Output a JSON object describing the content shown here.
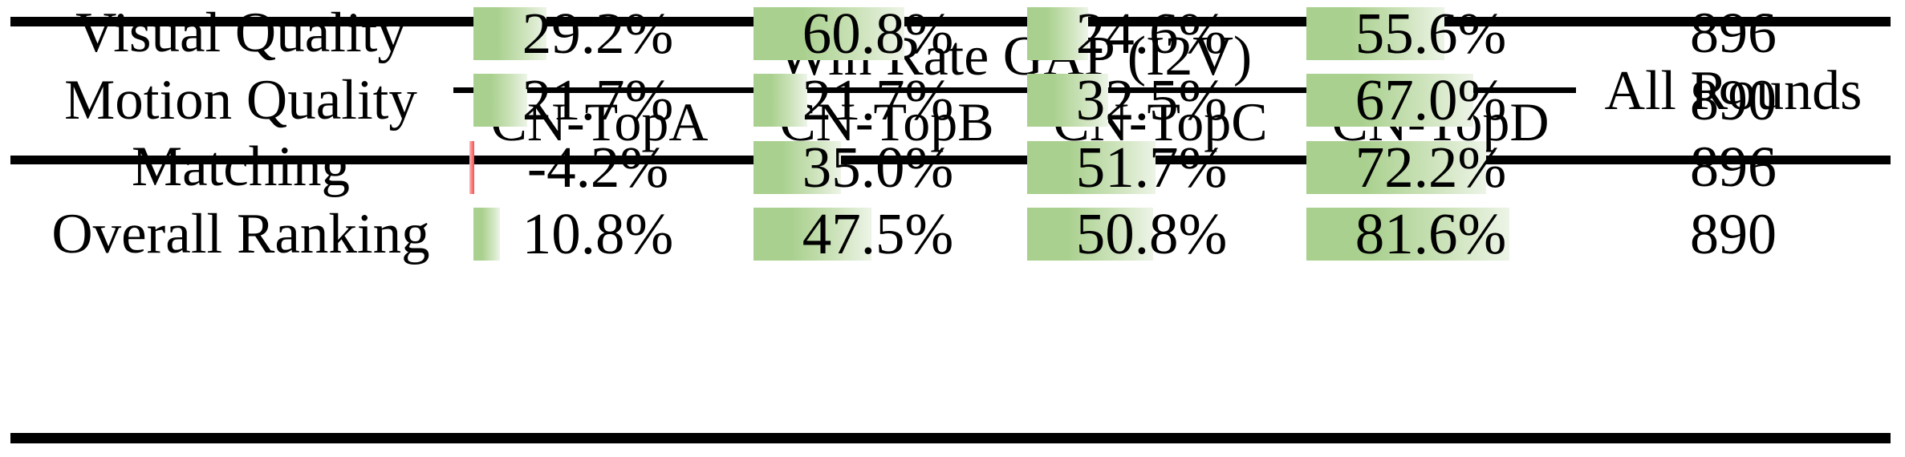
{
  "figure": {
    "title": "Win Rate GAP (I2V)",
    "all_rounds_label": "All Rounds",
    "columns": [
      "CN-TopA",
      "CN-TopB",
      "CN-TopC",
      "CN-TopD"
    ],
    "rows": [
      {
        "label": "Visual Quality",
        "cells": [
          {
            "text": "29.2%",
            "value": 29.2
          },
          {
            "text": "60.8%",
            "value": 60.8
          },
          {
            "text": "24.6%",
            "value": 24.6
          },
          {
            "text": "55.6%",
            "value": 55.6
          }
        ],
        "all_rounds": "896"
      },
      {
        "label": "Motion Quality",
        "cells": [
          {
            "text": "21.7%",
            "value": 21.7
          },
          {
            "text": "21.7%",
            "value": 21.7
          },
          {
            "text": "32.5%",
            "value": 32.5
          },
          {
            "text": "67.0%",
            "value": 67.0
          }
        ],
        "all_rounds": "890"
      },
      {
        "label": "Matching",
        "cells": [
          {
            "text": "-4.2%",
            "value": -4.2
          },
          {
            "text": "35.0%",
            "value": 35.0
          },
          {
            "text": "51.7%",
            "value": 51.7
          },
          {
            "text": "72.2%",
            "value": 72.2
          }
        ],
        "all_rounds": "896"
      },
      {
        "label": "Overall Ranking",
        "cells": [
          {
            "text": "10.8%",
            "value": 10.8
          },
          {
            "text": "47.5%",
            "value": 47.5
          },
          {
            "text": "50.8%",
            "value": 50.8
          },
          {
            "text": "81.6%",
            "value": 81.6
          }
        ],
        "all_rounds": "890"
      }
    ]
  },
  "colors": {
    "rule": "#000000",
    "bar_positive_start": "#a9d08e",
    "bar_positive_mid": "#cde3bb",
    "bar_positive_end": "#edf4e7",
    "bar_negative_start": "#fbb4b4",
    "bar_negative_end": "#f4504f"
  },
  "chart_data": {
    "type": "table",
    "title": "Win Rate GAP (I2V)",
    "columns": [
      "",
      "CN-TopA",
      "CN-TopB",
      "CN-TopC",
      "CN-TopD",
      "All Rounds"
    ],
    "rows": [
      [
        "Visual Quality",
        29.2,
        60.8,
        24.6,
        55.6,
        896
      ],
      [
        "Motion Quality",
        21.7,
        21.7,
        32.5,
        67.0,
        890
      ],
      [
        "Matching",
        -4.2,
        35.0,
        51.7,
        72.2,
        896
      ],
      [
        "Overall Ranking",
        10.8,
        47.5,
        50.8,
        81.6,
        890
      ]
    ],
    "units": "percent win-rate gap with in-cell green data bars (red for negative); All Rounds column is a count",
    "bar_scale": "bar width proportional to value, 100% ≈ 310px track"
  }
}
